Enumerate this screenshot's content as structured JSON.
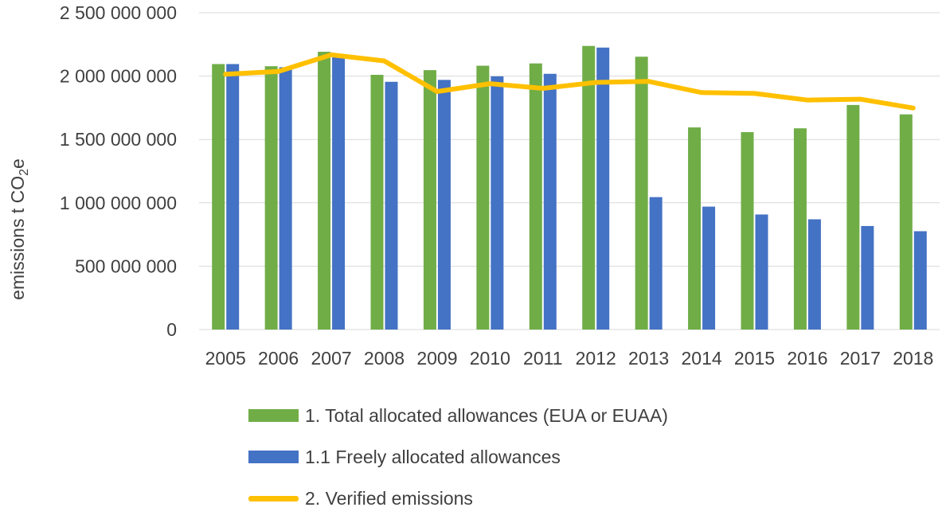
{
  "chart_data": {
    "type": "bar",
    "categories": [
      "2005",
      "2006",
      "2007",
      "2008",
      "2009",
      "2010",
      "2011",
      "2012",
      "2013",
      "2014",
      "2015",
      "2016",
      "2017",
      "2018"
    ],
    "series": [
      {
        "name": "1. Total allocated allowances (EUA or EUAA)",
        "type": "bar",
        "color": "#70ad47",
        "values": [
          2095000000,
          2078000000,
          2192000000,
          2010000000,
          2047000000,
          2082000000,
          2100000000,
          2238000000,
          2153000000,
          1595000000,
          1558000000,
          1588000000,
          1772000000,
          1698000000
        ]
      },
      {
        "name": "1.1 Freely allocated allowances",
        "type": "bar",
        "color": "#4472c4",
        "values": [
          2095000000,
          2070000000,
          2170000000,
          1955000000,
          1970000000,
          1998000000,
          2018000000,
          2225000000,
          1045000000,
          970000000,
          908000000,
          870000000,
          817000000,
          776000000
        ]
      },
      {
        "name": "2. Verified emissions",
        "type": "line",
        "color": "#ffc000",
        "values": [
          2015000000,
          2037000000,
          2168000000,
          2120000000,
          1878000000,
          1940000000,
          1903000000,
          1950000000,
          1958000000,
          1870000000,
          1863000000,
          1811000000,
          1818000000,
          1748000000
        ]
      }
    ],
    "yticks": [
      0,
      500000000,
      1000000000,
      1500000000,
      2000000000,
      2500000000
    ],
    "ytick_labels": [
      "0",
      "500 000 000",
      "1 000 000 000",
      "1 500 000 000",
      "2 000 000 000",
      "2 500 000 000"
    ],
    "ylim": [
      0,
      2500000000
    ],
    "ylabel_main": "emissions t CO",
    "ylabel_sub": "2",
    "ylabel_end": "e",
    "xlabel": "",
    "title": "",
    "grid": true,
    "legend_position": "bottom"
  }
}
